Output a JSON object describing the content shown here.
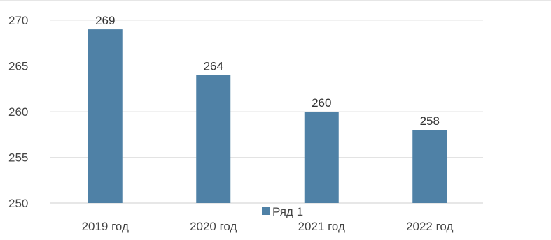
{
  "chart_data": {
    "type": "bar",
    "categories": [
      "2019 год",
      "2020 год",
      "2021 год",
      "2022 год"
    ],
    "series": [
      {
        "name": "Ряд 1",
        "values": [
          269,
          264,
          260,
          258
        ],
        "color": "#4f81a6"
      }
    ],
    "ylim": [
      250,
      270
    ],
    "yticks": [
      250,
      255,
      260,
      265,
      270
    ],
    "grid": true,
    "legend": "bottom-center",
    "data_labels": true
  }
}
